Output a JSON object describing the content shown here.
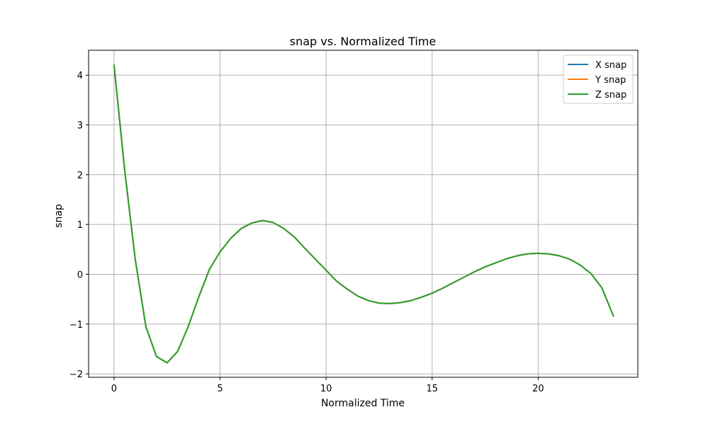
{
  "colors": {
    "x_snap": "#1f77b4",
    "y_snap": "#ff7f0e",
    "z_snap": "#2ca02c",
    "grid": "#b0b0b0",
    "axes": "#000000"
  },
  "chart_data": {
    "type": "line",
    "title": "snap vs. Normalized Time",
    "xlabel": "Normalized Time",
    "ylabel": "snap",
    "xlim": [
      -1.2,
      24.7
    ],
    "ylim": [
      -2.07,
      4.5
    ],
    "xticks": [
      0,
      5,
      10,
      15,
      20
    ],
    "xtick_labels": [
      "0",
      "5",
      "10",
      "15",
      "20"
    ],
    "yticks": [
      -2,
      -1,
      0,
      1,
      2,
      3,
      4
    ],
    "ytick_labels": [
      "−2",
      "−1",
      "0",
      "1",
      "2",
      "3",
      "4"
    ],
    "grid": true,
    "legend_position": "top-right",
    "x": [
      0,
      0.5,
      1,
      1.5,
      2,
      2.5,
      3,
      3.5,
      4,
      4.5,
      5,
      5.5,
      6,
      6.5,
      7,
      7.5,
      8,
      8.5,
      9,
      9.5,
      10,
      10.5,
      11,
      11.5,
      12,
      12.5,
      13,
      13.5,
      14,
      14.5,
      15,
      15.5,
      16,
      16.5,
      17,
      17.5,
      18,
      18.5,
      19,
      19.5,
      20,
      20.5,
      21,
      21.5,
      22,
      22.5,
      23,
      23.55
    ],
    "series": [
      {
        "name": "X snap",
        "color_key": "x_snap",
        "values": [
          4.2,
          2.1,
          0.3,
          -1.05,
          -1.65,
          -1.78,
          -1.55,
          -1.05,
          -0.45,
          0.1,
          0.45,
          0.72,
          0.92,
          1.03,
          1.08,
          1.04,
          0.92,
          0.75,
          0.52,
          0.3,
          0.08,
          -0.14,
          -0.3,
          -0.44,
          -0.53,
          -0.58,
          -0.59,
          -0.57,
          -0.53,
          -0.46,
          -0.38,
          -0.28,
          -0.17,
          -0.06,
          0.05,
          0.15,
          0.23,
          0.31,
          0.37,
          0.41,
          0.42,
          0.41,
          0.37,
          0.3,
          0.18,
          0.01,
          -0.27,
          -0.84
        ]
      },
      {
        "name": "Y snap",
        "color_key": "y_snap",
        "values": [
          4.2,
          2.1,
          0.3,
          -1.05,
          -1.65,
          -1.78,
          -1.55,
          -1.05,
          -0.45,
          0.1,
          0.45,
          0.72,
          0.92,
          1.03,
          1.08,
          1.04,
          0.92,
          0.75,
          0.52,
          0.3,
          0.08,
          -0.14,
          -0.3,
          -0.44,
          -0.53,
          -0.58,
          -0.59,
          -0.57,
          -0.53,
          -0.46,
          -0.38,
          -0.28,
          -0.17,
          -0.06,
          0.05,
          0.15,
          0.23,
          0.31,
          0.37,
          0.41,
          0.42,
          0.41,
          0.37,
          0.3,
          0.18,
          0.01,
          -0.27,
          -0.84
        ]
      },
      {
        "name": "Z snap",
        "color_key": "z_snap",
        "values": [
          4.2,
          2.1,
          0.3,
          -1.05,
          -1.65,
          -1.78,
          -1.55,
          -1.05,
          -0.45,
          0.1,
          0.45,
          0.72,
          0.92,
          1.03,
          1.08,
          1.04,
          0.92,
          0.75,
          0.52,
          0.3,
          0.08,
          -0.14,
          -0.3,
          -0.44,
          -0.53,
          -0.58,
          -0.59,
          -0.57,
          -0.53,
          -0.46,
          -0.38,
          -0.28,
          -0.17,
          -0.06,
          0.05,
          0.15,
          0.23,
          0.31,
          0.37,
          0.41,
          0.42,
          0.41,
          0.37,
          0.3,
          0.18,
          0.01,
          -0.27,
          -0.84
        ]
      }
    ]
  }
}
